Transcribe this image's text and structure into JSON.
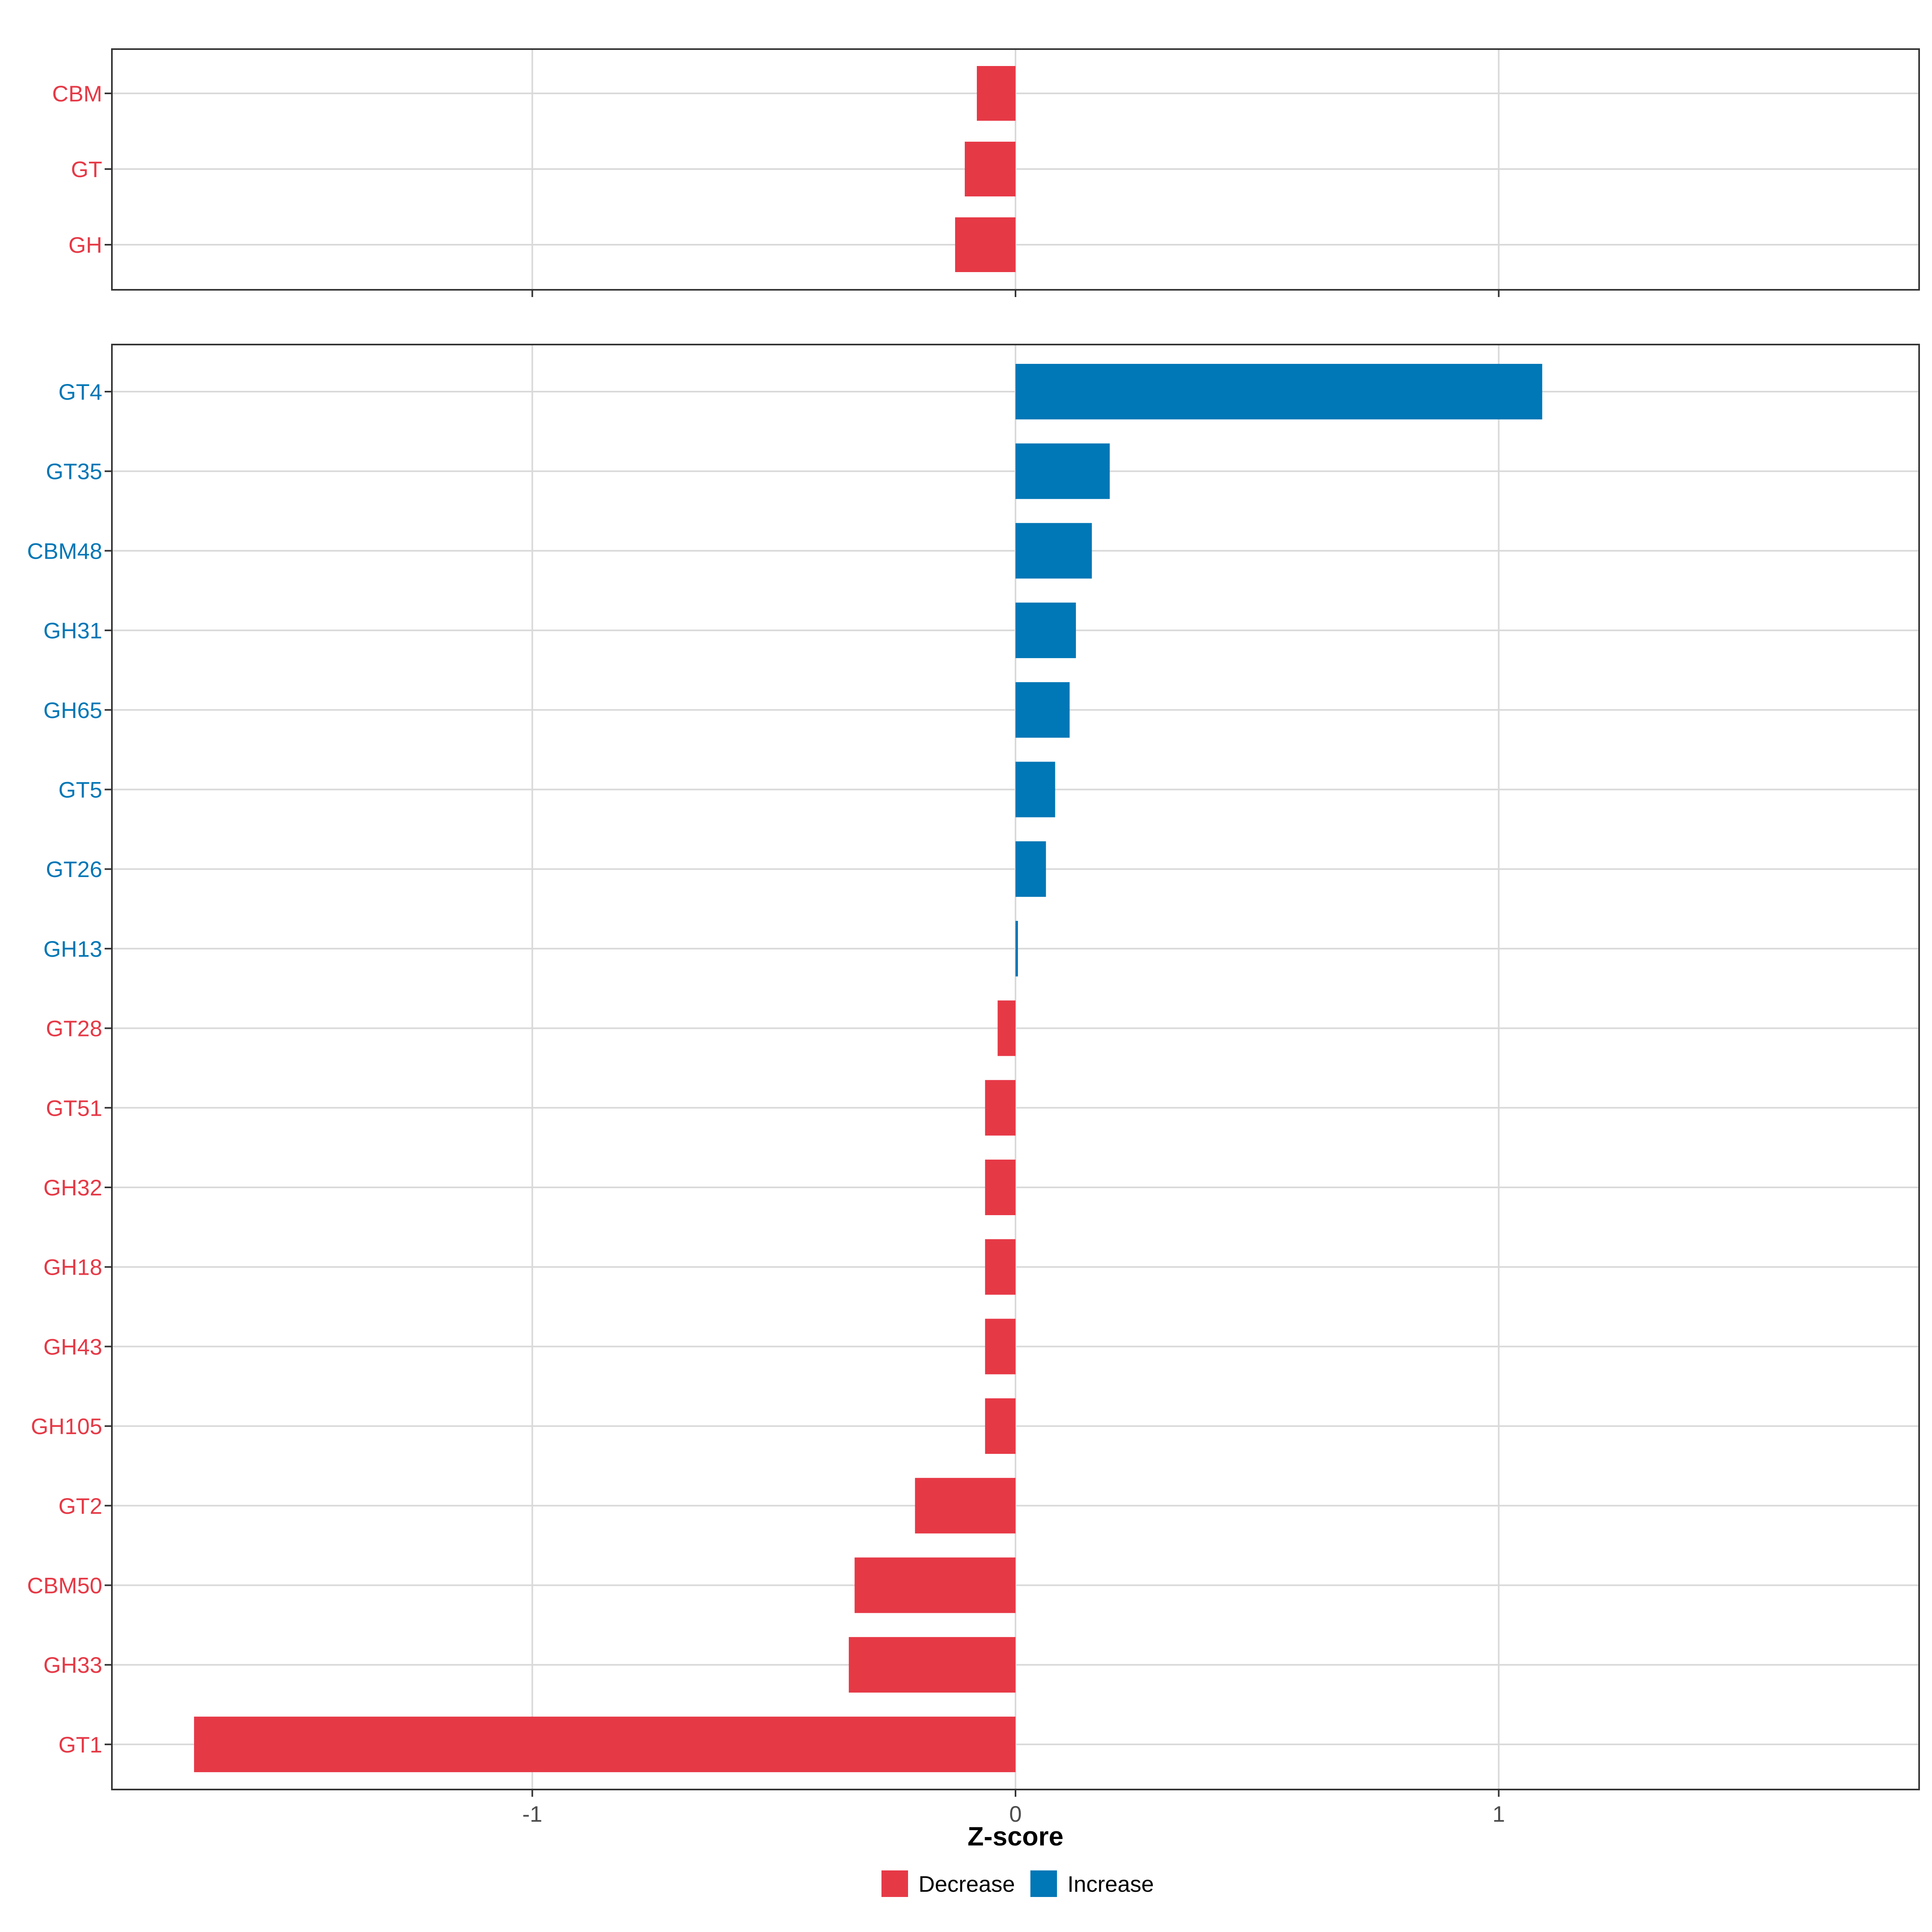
{
  "chart_data": {
    "type": "bar",
    "orientation": "horizontal",
    "xlabel": "Z-score",
    "xlim": [
      -1.87,
      1.87
    ],
    "x_ticks": [
      -1,
      0,
      1
    ],
    "x_tick_labels": [
      "-1",
      "0",
      "1"
    ],
    "grid": true,
    "legend_position": "bottom",
    "colors": {
      "Decrease": "#e63946",
      "Increase": "#0077b6"
    },
    "legend": [
      {
        "label": "Decrease",
        "color": "#e63946"
      },
      {
        "label": "Increase",
        "color": "#0077b6"
      }
    ],
    "panels": [
      {
        "name": "top",
        "categories": [
          "CBM",
          "GT",
          "GH"
        ],
        "values": [
          -0.08,
          -0.105,
          -0.125
        ],
        "direction": [
          "Decrease",
          "Decrease",
          "Decrease"
        ]
      },
      {
        "name": "bottom",
        "categories": [
          "GT4",
          "GT35",
          "CBM48",
          "GH31",
          "GH65",
          "GT5",
          "GT26",
          "GH13",
          "GT28",
          "GT51",
          "GH32",
          "GH18",
          "GH43",
          "GH105",
          "GT2",
          "CBM50",
          "GH33",
          "GT1"
        ],
        "values": [
          1.09,
          0.195,
          0.158,
          0.125,
          0.112,
          0.082,
          0.063,
          0.005,
          -0.037,
          -0.063,
          -0.063,
          -0.063,
          -0.063,
          -0.063,
          -0.208,
          -0.333,
          -0.345,
          -1.7
        ],
        "direction": [
          "Increase",
          "Increase",
          "Increase",
          "Increase",
          "Increase",
          "Increase",
          "Increase",
          "Increase",
          "Decrease",
          "Decrease",
          "Decrease",
          "Decrease",
          "Decrease",
          "Decrease",
          "Decrease",
          "Decrease",
          "Decrease",
          "Decrease"
        ]
      }
    ]
  }
}
